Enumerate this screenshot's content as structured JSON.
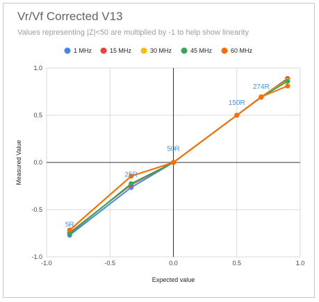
{
  "chart_data": {
    "type": "line",
    "title": "Vr/Vf Corrected V13",
    "subtitle": "Values representing |Z|<50 are multiplied by -1 to help show linearity",
    "xlabel": "Expected value",
    "ylabel": "Measured Value",
    "xlim": [
      -1.0,
      1.0
    ],
    "ylim": [
      -1.0,
      1.0
    ],
    "x_ticks": [
      "-1.0",
      "-0.5",
      "0.0",
      "0.5",
      "1.0"
    ],
    "y_ticks": [
      "1.0",
      "0.5",
      "0.0",
      "-0.5",
      "-1.0"
    ],
    "grid": true,
    "legend_position": "top",
    "series": [
      {
        "name": "1 MHz",
        "color": "#4285f4",
        "points": [
          [
            -0.818,
            -0.77
          ],
          [
            -0.333,
            -0.265
          ],
          [
            0.0,
            0.0
          ],
          [
            0.5,
            0.5
          ],
          [
            0.692,
            0.69
          ],
          [
            0.9,
            0.89
          ]
        ]
      },
      {
        "name": "15 MHz",
        "color": "#ea4335",
        "points": [
          [
            -0.818,
            -0.745
          ],
          [
            -0.333,
            -0.235
          ],
          [
            0.0,
            0.0
          ],
          [
            0.5,
            0.5
          ],
          [
            0.692,
            0.695
          ],
          [
            0.9,
            0.885
          ]
        ]
      },
      {
        "name": "30 MHz",
        "color": "#fbbc04",
        "points": [
          [
            -0.818,
            -0.72
          ],
          [
            -0.333,
            -0.145
          ],
          [
            0.0,
            0.0
          ],
          [
            0.5,
            0.5
          ],
          [
            0.692,
            0.695
          ],
          [
            0.9,
            0.87
          ]
        ]
      },
      {
        "name": "45 MHz",
        "color": "#34a853",
        "points": [
          [
            -0.818,
            -0.755
          ],
          [
            -0.333,
            -0.225
          ],
          [
            0.0,
            0.0
          ],
          [
            0.5,
            0.5
          ],
          [
            0.692,
            0.692
          ],
          [
            0.9,
            0.86
          ]
        ]
      },
      {
        "name": "60 MHz",
        "color": "#ff6d01",
        "points": [
          [
            -0.818,
            -0.715
          ],
          [
            -0.333,
            -0.145
          ],
          [
            0.0,
            0.0
          ],
          [
            0.5,
            0.5
          ],
          [
            0.692,
            0.695
          ],
          [
            0.9,
            0.81
          ]
        ]
      }
    ],
    "annotations": [
      {
        "text": "5R",
        "x": -0.818,
        "y": -0.68
      },
      {
        "text": "25R",
        "x": -0.333,
        "y": -0.15
      },
      {
        "text": "50R",
        "x": 0.0,
        "y": 0.12
      },
      {
        "text": "150R",
        "x": 0.5,
        "y": 0.61
      },
      {
        "text": "274R",
        "x": 0.692,
        "y": 0.78
      }
    ]
  }
}
